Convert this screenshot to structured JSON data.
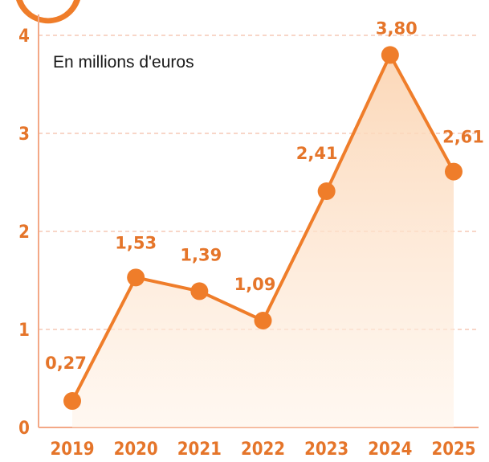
{
  "chart_data": {
    "type": "area",
    "title": "",
    "unit_note": "En millions d'euros",
    "xlabel": "",
    "ylabel": "",
    "categories": [
      "2019",
      "2020",
      "2021",
      "2022",
      "2023",
      "2024",
      "2025"
    ],
    "series": [
      {
        "values": [
          0.27,
          1.53,
          1.39,
          1.09,
          2.41,
          3.8,
          2.61
        ],
        "value_labels": [
          "0,27",
          "1,53",
          "1,39",
          "1,09",
          "2,41",
          "3,80",
          "2,61"
        ]
      }
    ],
    "ylim": [
      0,
      4
    ],
    "y_ticks": [
      "0",
      "1",
      "2",
      "3",
      "4"
    ],
    "grid": true,
    "legend": "none",
    "colors": {
      "line": "#ef7d2a",
      "marker": "#ef7d2a",
      "fill": "#fde3cc",
      "grid": "#f6c9b5",
      "axis": "#f3a886",
      "text": "#e5752a",
      "note": "#1a1a1a"
    }
  }
}
